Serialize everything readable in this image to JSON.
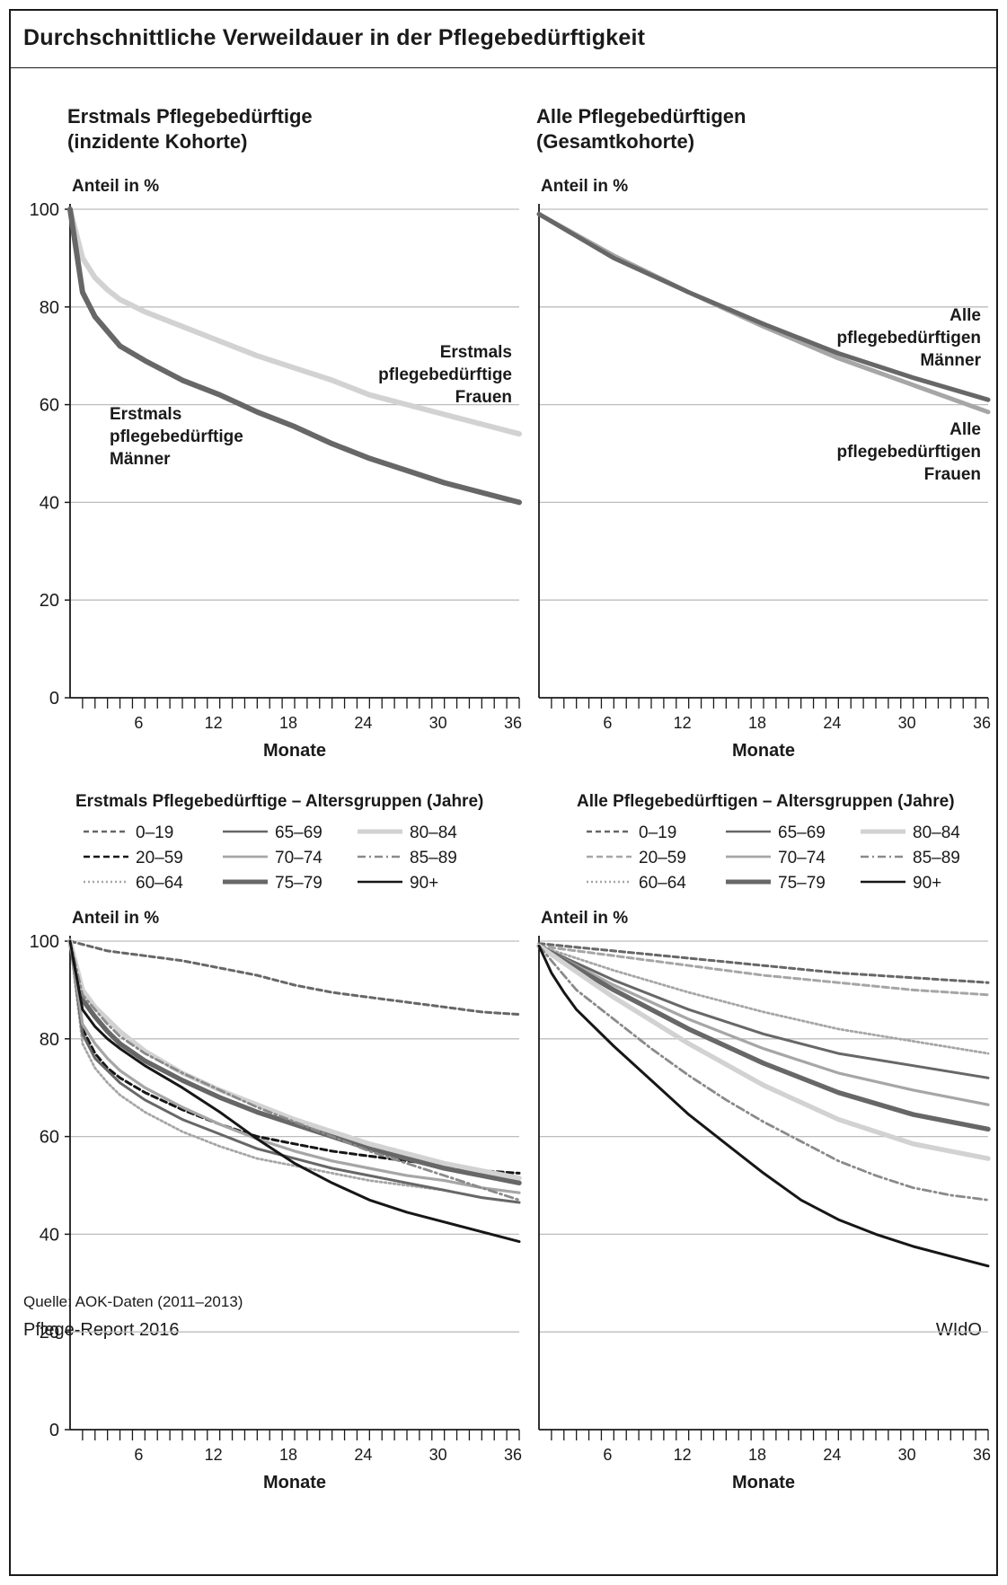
{
  "title": "Durchschnittliche Verweildauer in der Pflegebedürftigkeit",
  "source": "Quelle: AOK-Daten (2011–2013)",
  "report": "Pflege-Report 2016",
  "publisher": "WIdO",
  "colors": {
    "dark": "#676767",
    "light": "#d2d2d2",
    "black": "#161616",
    "mid": "#8a8a8a",
    "mid2": "#a6a6a6"
  },
  "chart_data": [
    {
      "type": "line",
      "title": "Erstmals Pflegebedürftige",
      "subtitle": "(inzidente Kohorte)",
      "ylabel": "Anteil in %",
      "xlabel": "Monate",
      "xlim": [
        0,
        36
      ],
      "ylim": [
        0,
        100
      ],
      "xticks": [
        6,
        12,
        18,
        24,
        30,
        36
      ],
      "yticks": [
        0,
        20,
        40,
        60,
        80,
        100
      ],
      "grid": true,
      "series": [
        {
          "name": "Erstmals pflegebedürftige Frauen",
          "x": [
            0,
            1,
            2,
            3,
            4,
            6,
            9,
            12,
            15,
            18,
            21,
            24,
            27,
            30,
            33,
            36
          ],
          "y": [
            100,
            90,
            86,
            83.5,
            81.5,
            79,
            76,
            73,
            70,
            67.5,
            65,
            62,
            60,
            58,
            56,
            54
          ]
        },
        {
          "name": "Erstmals pflegebedürftige Männer",
          "x": [
            0,
            1,
            2,
            3,
            4,
            6,
            9,
            12,
            15,
            18,
            21,
            24,
            27,
            30,
            33,
            36
          ],
          "y": [
            100,
            83,
            78,
            75,
            72,
            69,
            65,
            62,
            58.5,
            55.5,
            52,
            49,
            46.5,
            44,
            42,
            40
          ]
        }
      ]
    },
    {
      "type": "line",
      "title": "Alle Pflegebedürftigen",
      "subtitle": "(Gesamtkohorte)",
      "ylabel": "Anteil in %",
      "xlabel": "Monate",
      "xlim": [
        0,
        36
      ],
      "ylim": [
        0,
        100
      ],
      "xticks": [
        6,
        12,
        18,
        24,
        30,
        36
      ],
      "yticks": [
        0,
        20,
        40,
        60,
        80,
        100
      ],
      "grid": true,
      "series": [
        {
          "name": "Alle pflegebedürftigen Männer",
          "x": [
            0,
            6,
            12,
            18,
            24,
            30,
            36
          ],
          "y": [
            99,
            90,
            83,
            76.5,
            70.5,
            65.5,
            61
          ]
        },
        {
          "name": "Alle pflegebedürftigen Frauen",
          "x": [
            0,
            6,
            12,
            18,
            24,
            30,
            36
          ],
          "y": [
            99,
            90.5,
            83,
            76,
            69.5,
            64,
            58.5
          ]
        }
      ]
    },
    {
      "type": "line",
      "title": "Erstmals Pflegebedürftige – Altersgruppen (Jahre)",
      "ylabel": "Anteil in %",
      "xlabel": "Monate",
      "xlim": [
        0,
        36
      ],
      "ylim": [
        0,
        100
      ],
      "xticks": [
        6,
        12,
        18,
        24,
        30,
        36
      ],
      "yticks": [
        0,
        20,
        40,
        60,
        80,
        100
      ],
      "grid": true,
      "series": [
        {
          "name": "0–19",
          "x": [
            0,
            3,
            6,
            9,
            12,
            15,
            18,
            21,
            24,
            27,
            30,
            33,
            36
          ],
          "y": [
            100,
            98,
            97,
            96,
            94.5,
            93,
            91,
            89.5,
            88.5,
            87.5,
            86.5,
            85.5,
            85
          ]
        },
        {
          "name": "20–59",
          "x": [
            0,
            1,
            2,
            3,
            4,
            6,
            9,
            12,
            15,
            18,
            21,
            24,
            27,
            30,
            33,
            36
          ],
          "y": [
            100,
            82,
            77,
            74,
            72,
            69,
            65.5,
            62.5,
            60,
            58.5,
            57,
            56,
            55,
            54,
            53,
            52.5
          ]
        },
        {
          "name": "60–64",
          "x": [
            0,
            1,
            2,
            3,
            4,
            6,
            9,
            12,
            15,
            18,
            21,
            24,
            27,
            30,
            33,
            36
          ],
          "y": [
            100,
            79,
            74,
            71,
            68.5,
            65,
            61,
            58,
            55.5,
            54,
            52.5,
            51,
            50,
            49,
            47.5,
            46.5
          ]
        },
        {
          "name": "65–69",
          "x": [
            0,
            1,
            2,
            3,
            4,
            6,
            9,
            12,
            15,
            18,
            21,
            24,
            27,
            30,
            33,
            36
          ],
          "y": [
            100,
            81,
            76,
            73.5,
            71,
            67.5,
            63.5,
            60.5,
            57.5,
            55.5,
            53.5,
            52,
            50.5,
            49,
            47.5,
            46.5
          ]
        },
        {
          "name": "70–74",
          "x": [
            0,
            1,
            2,
            3,
            4,
            6,
            9,
            12,
            15,
            18,
            21,
            24,
            27,
            30,
            33,
            36
          ],
          "y": [
            100,
            83,
            79,
            76,
            73.5,
            70,
            66,
            62.5,
            59.5,
            57,
            55,
            53.5,
            52,
            51,
            49.5,
            48.5
          ]
        },
        {
          "name": "75–79",
          "x": [
            0,
            1,
            2,
            3,
            4,
            6,
            9,
            12,
            15,
            18,
            21,
            24,
            27,
            30,
            33,
            36
          ],
          "y": [
            100,
            88,
            84.5,
            81.5,
            79,
            75.5,
            71.5,
            68,
            65,
            62.5,
            60,
            57.5,
            55.5,
            53.5,
            52,
            50.5
          ]
        },
        {
          "name": "80–84",
          "x": [
            0,
            1,
            2,
            3,
            4,
            6,
            9,
            12,
            15,
            18,
            21,
            24,
            27,
            30,
            33,
            36
          ],
          "y": [
            100,
            90,
            86.5,
            84,
            81.5,
            77.5,
            73,
            69.5,
            66.5,
            63.5,
            61,
            58.5,
            56.5,
            54.5,
            53,
            51.5
          ]
        },
        {
          "name": "85–89",
          "x": [
            0,
            1,
            2,
            3,
            4,
            6,
            9,
            12,
            15,
            18,
            21,
            24,
            27,
            30,
            33,
            36
          ],
          "y": [
            100,
            89,
            86,
            83,
            80.5,
            77,
            73,
            69.5,
            66,
            63,
            60,
            57,
            54.5,
            52,
            49.5,
            47
          ]
        },
        {
          "name": "90+",
          "x": [
            0,
            1,
            2,
            3,
            4,
            6,
            9,
            12,
            15,
            18,
            21,
            24,
            27,
            30,
            33,
            36
          ],
          "y": [
            100,
            86,
            82.5,
            80,
            78,
            74.5,
            70,
            65,
            59.5,
            54.5,
            50.5,
            47,
            44.5,
            42.5,
            40.5,
            38.5
          ]
        }
      ]
    },
    {
      "type": "line",
      "title": "Alle Pflegebedürftigen – Altersgruppen (Jahre)",
      "ylabel": "Anteil in %",
      "xlabel": "Monate",
      "xlim": [
        0,
        36
      ],
      "ylim": [
        0,
        100
      ],
      "xticks": [
        6,
        12,
        18,
        24,
        30,
        36
      ],
      "yticks": [
        0,
        20,
        40,
        60,
        80,
        100
      ],
      "grid": true,
      "series": [
        {
          "name": "0–19",
          "x": [
            0,
            6,
            12,
            18,
            24,
            30,
            36
          ],
          "y": [
            99.5,
            98,
            96.5,
            95,
            93.5,
            92.5,
            91.5
          ]
        },
        {
          "name": "20–59",
          "x": [
            0,
            6,
            12,
            18,
            24,
            30,
            36
          ],
          "y": [
            99,
            97,
            95,
            93,
            91.5,
            90,
            89
          ]
        },
        {
          "name": "60–64",
          "x": [
            0,
            6,
            12,
            18,
            24,
            30,
            36
          ],
          "y": [
            99,
            94,
            89.5,
            85.5,
            82,
            79.5,
            77
          ]
        },
        {
          "name": "65–69",
          "x": [
            0,
            6,
            12,
            18,
            24,
            30,
            36
          ],
          "y": [
            99,
            92,
            86,
            81,
            77,
            74.5,
            72
          ]
        },
        {
          "name": "70–74",
          "x": [
            0,
            6,
            12,
            18,
            24,
            30,
            36
          ],
          "y": [
            99,
            91,
            84,
            78,
            73,
            69.5,
            66.5
          ]
        },
        {
          "name": "75–79",
          "x": [
            0,
            6,
            12,
            18,
            24,
            30,
            36
          ],
          "y": [
            99,
            90,
            82,
            75,
            69,
            64.5,
            61.5
          ]
        },
        {
          "name": "80–84",
          "x": [
            0,
            6,
            12,
            18,
            24,
            30,
            36
          ],
          "y": [
            99,
            88.5,
            79,
            70.5,
            63.5,
            58.5,
            55.5
          ]
        },
        {
          "name": "85–89",
          "x": [
            0,
            1,
            2,
            3,
            6,
            9,
            12,
            15,
            18,
            21,
            24,
            27,
            30,
            33,
            36
          ],
          "y": [
            99,
            96,
            93,
            90,
            84,
            78,
            72.5,
            67.5,
            63,
            59,
            55,
            52,
            49.5,
            48,
            47
          ]
        },
        {
          "name": "90+",
          "x": [
            0,
            1,
            2,
            3,
            6,
            9,
            12,
            15,
            18,
            21,
            24,
            27,
            30,
            33,
            36
          ],
          "y": [
            99,
            93.5,
            89.5,
            86,
            78.5,
            71.5,
            64.5,
            58.5,
            52.5,
            47,
            43,
            40,
            37.5,
            35.5,
            33.5
          ]
        }
      ]
    }
  ],
  "annotations": {
    "p1_frauen": [
      "Erstmals",
      "pflegebedürftige",
      "Frauen"
    ],
    "p1_maenner": [
      "Erstmals",
      "pflegebedürftige",
      "Männer"
    ],
    "p2_maenner": [
      "Alle",
      "pflegebedürftigen",
      "Männer"
    ],
    "p2_frauen": [
      "Alle",
      "pflegebedürftigen",
      "Frauen"
    ]
  },
  "legend_styles": {
    "0–19": "dash-dark",
    "20–59": "dash-black",
    "60–64": "dot-light",
    "65–69": "solid-dark",
    "70–74": "solid-mid",
    "75–79": "solid-dark-thick",
    "80–84": "solid-light-thick",
    "85–89": "dashdot-mid",
    "90+": "solid-black"
  },
  "legend_styles_p4_override": {
    "20–59": "dash-mid"
  }
}
